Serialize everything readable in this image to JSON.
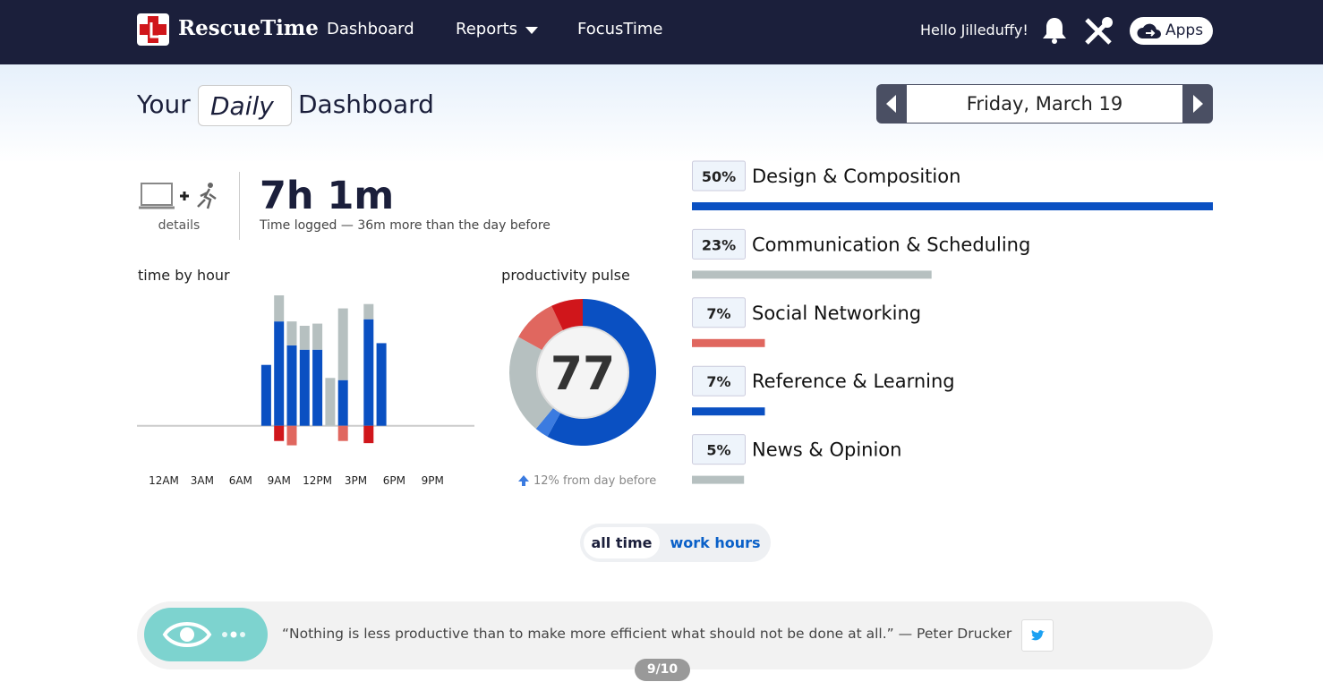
{
  "nav": {
    "logo": "RescueTime",
    "links": [
      "Dashboard",
      "Reports",
      "FocusTime"
    ],
    "greeting": "Hello Jilleduffy!",
    "apps": "Apps"
  },
  "header": {
    "prefix": "Your",
    "period": "Daily",
    "suffix": "Dashboard",
    "date": "Friday, March 19"
  },
  "summary": {
    "details": "details",
    "total": "7h 1m",
    "note": "Time logged — 36m more than the day before"
  },
  "time_by_hour": {
    "type": "bar",
    "title": "time by hour",
    "stacked": true,
    "x": [
      8,
      9,
      10,
      11,
      12,
      13,
      14,
      16,
      17
    ],
    "xlim": [
      -2,
      24
    ],
    "xticks": [
      {
        "value": 0,
        "label": "12AM"
      },
      {
        "value": 3,
        "label": "3AM"
      },
      {
        "value": 6,
        "label": "6AM"
      },
      {
        "value": 9,
        "label": "9AM"
      },
      {
        "value": 12,
        "label": "12PM"
      },
      {
        "value": 15,
        "label": "3PM"
      },
      {
        "value": 18,
        "label": "6PM"
      },
      {
        "value": 21,
        "label": "9PM"
      }
    ],
    "ylim": [
      -10,
      60
    ],
    "series": [
      {
        "color": "#0a50c2",
        "values": [
          28,
          48,
          37,
          35,
          35,
          0,
          21,
          49,
          38
        ]
      },
      {
        "color": "#b6c0c0",
        "values": [
          0,
          12,
          11,
          11,
          12,
          22,
          33,
          7,
          0
        ]
      },
      {
        "color": "#e0675f",
        "values": [
          0,
          0,
          -9,
          0,
          0,
          0,
          -7,
          0,
          0
        ]
      },
      {
        "color": "#d0161b",
        "values": [
          0,
          -7,
          0,
          0,
          0,
          0,
          0,
          -8,
          0
        ]
      }
    ]
  },
  "pulse": {
    "type": "pie",
    "title": "productivity pulse",
    "score": 77,
    "note": "12% from day before",
    "values": [
      58,
      3,
      22,
      10,
      7
    ],
    "colors": [
      "#0a50c2",
      "#3b7be0",
      "#b6c0c0",
      "#e0675f",
      "#d0161b"
    ]
  },
  "categories": {
    "type": "bar",
    "xlim": [
      0,
      50
    ],
    "names": [
      "Design & Composition",
      "Communication & Scheduling",
      "Social Networking",
      "Reference & Learning",
      "News & Opinion"
    ],
    "values": [
      50,
      23,
      7,
      7,
      5
    ],
    "value_labels": [
      "50%",
      "23%",
      "7%",
      "7%",
      "5%"
    ],
    "colors": [
      "#0a50c2",
      "#b6c0c0",
      "#e0675f",
      "#0a50c2",
      "#b6c0c0"
    ]
  },
  "toggle": [
    "all time",
    "work hours"
  ],
  "quote": {
    "text": "“Nothing is less productive than to make more efficient what should not be done at all.” — Peter Drucker",
    "page": "9/10"
  }
}
